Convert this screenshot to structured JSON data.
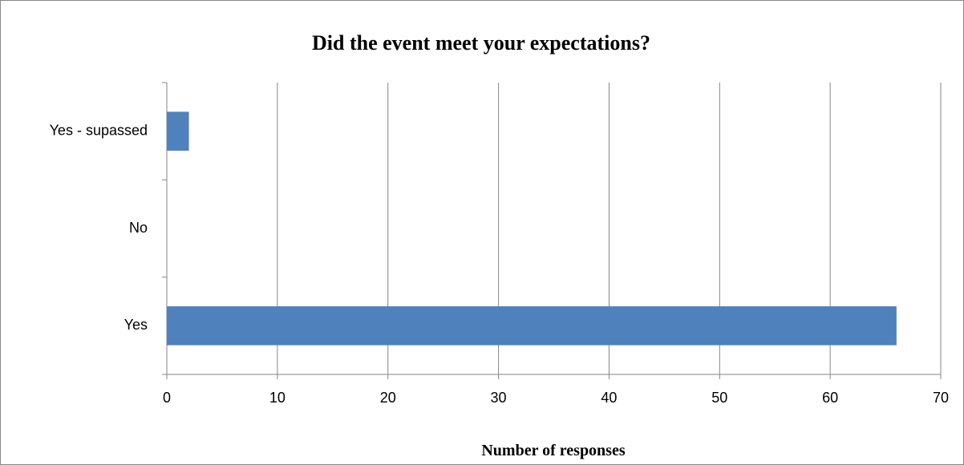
{
  "chart_data": {
    "type": "bar",
    "orientation": "horizontal",
    "title": "Did the event meet your expectations?",
    "x_label": "Number of responses",
    "categories": [
      "Yes",
      "No",
      "Yes - supassed"
    ],
    "values": [
      66,
      0,
      2
    ],
    "color": "#4f81bd",
    "xlim": [
      0,
      70
    ],
    "xticks": [
      0,
      10,
      20,
      30,
      40,
      50,
      60,
      70
    ],
    "grid": true
  }
}
